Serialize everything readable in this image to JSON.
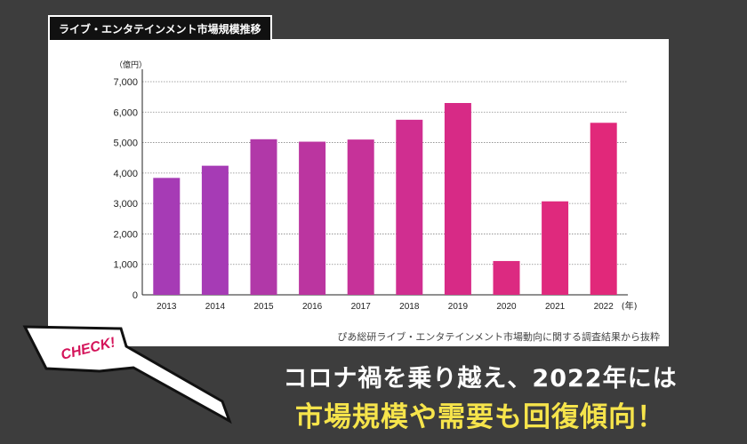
{
  "tab": {
    "title": "ライブ・エンタテインメント市場規模推移"
  },
  "chart_data": {
    "type": "bar",
    "unit_label": "（億円）",
    "categories": [
      "2013",
      "2014",
      "2015",
      "2016",
      "2017",
      "2018",
      "2019",
      "2020",
      "2021",
      "2022"
    ],
    "x_suffix": "(年)",
    "values": [
      3840,
      4240,
      5110,
      5030,
      5100,
      5750,
      6300,
      1110,
      3070,
      5650
    ],
    "yticks": [
      "0",
      "1,000",
      "2,000",
      "3,000",
      "4,000",
      "5,000",
      "6,000",
      "7,000"
    ],
    "ylim": [
      0,
      7000
    ],
    "grid": true,
    "colors": [
      "#a63bb5",
      "#a63bb5",
      "#b138a8",
      "#bb35a0",
      "#c63299",
      "#d02e90",
      "#d72a86",
      "#dc2a81",
      "#df297d",
      "#e1287a"
    ]
  },
  "source": "ぴあ総研ライブ・エンタテインメント市場動向に関する調査結果から抜粋",
  "badge": {
    "text": "CHECK!"
  },
  "headline": {
    "line1": "コロナ禍を乗り越え、2022年には",
    "line2": "市場規模や需要も回復傾向！"
  }
}
